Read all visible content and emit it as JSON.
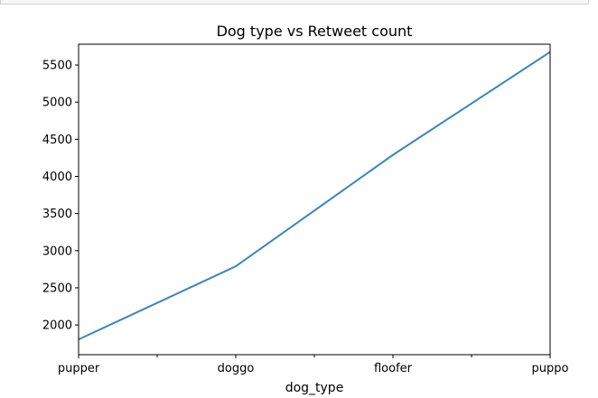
{
  "chart_data": {
    "type": "line",
    "title": "Dog type vs Retweet count",
    "xlabel": "dog_type",
    "ylabel": "",
    "categories": [
      "pupper",
      "doggo",
      "floofer",
      "puppo"
    ],
    "x_minor_ticks": 3,
    "series": [
      {
        "values": [
          1805,
          2790,
          4290,
          5675
        ]
      }
    ],
    "yticks": [
      2000,
      2500,
      3000,
      3500,
      4000,
      4500,
      5000,
      5500
    ],
    "ylim": [
      1600,
      5780
    ],
    "grid": false,
    "legend": "none",
    "colors": {
      "line": "#3b86c0",
      "axes": "#000000"
    }
  }
}
